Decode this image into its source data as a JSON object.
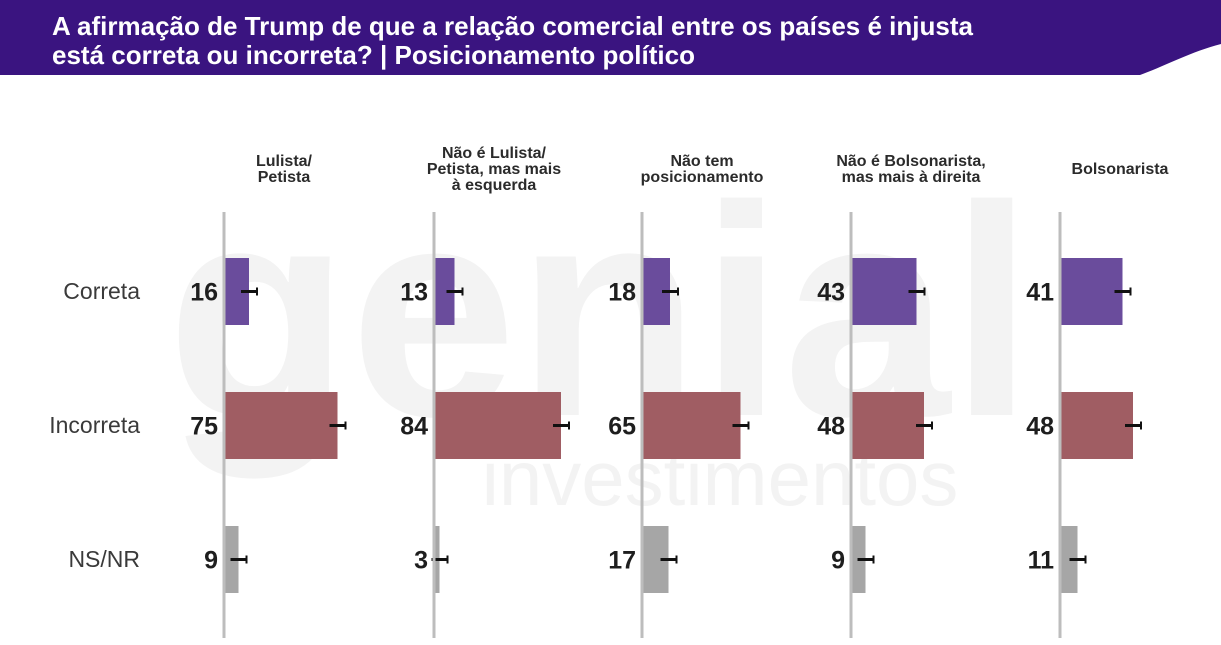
{
  "header": {
    "title_line1": "A afirmação de Trump de que a relação comercial entre os países é injusta",
    "title_line2": "está correta ou incorreta? | Posicionamento político"
  },
  "watermark": {
    "brand": "genial",
    "sub": "investimentos"
  },
  "colors": {
    "header_bg": "#3a1480",
    "correta": "#6a4c9c",
    "incorreta": "#a05d63",
    "nsnr": "#a6a6a6",
    "axis": "#bdbdbd",
    "error": "#111111"
  },
  "chart_data": {
    "type": "bar",
    "orientation": "horizontal",
    "title": "A afirmação de Trump de que a relação comercial entre os países é injusta está correta ou incorreta? | Posicionamento político",
    "categories": [
      "Correta",
      "Incorreta",
      "NS/NR"
    ],
    "groups": [
      {
        "name": "Lulista/\nPetista",
        "values": [
          16,
          75,
          9
        ]
      },
      {
        "name": "Não é Lulista/\nPetista, mas mais\nà esquerda",
        "values": [
          13,
          84,
          3
        ]
      },
      {
        "name": "Não tem\nposicionamento",
        "values": [
          18,
          65,
          17
        ]
      },
      {
        "name": "Não é Bolsonarista,\nmas mais à direita",
        "values": [
          43,
          48,
          9
        ]
      },
      {
        "name": "Bolsonarista",
        "values": [
          41,
          48,
          11
        ]
      }
    ],
    "xlim": [
      0,
      100
    ],
    "error_bars": true,
    "grid": false,
    "legend": "none"
  }
}
